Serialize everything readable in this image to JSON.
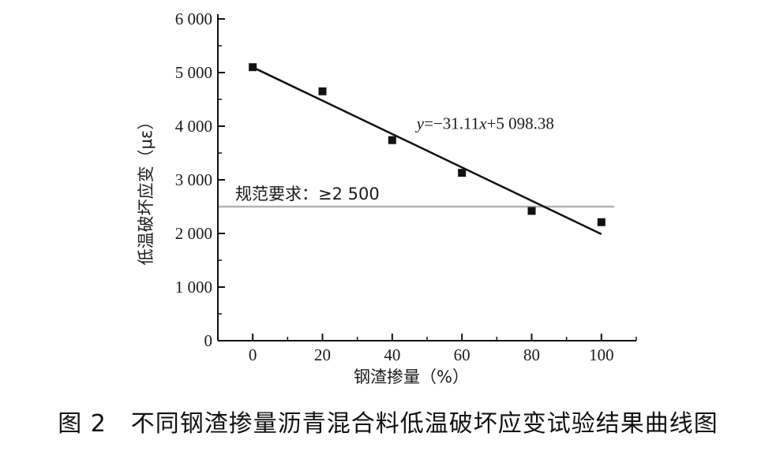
{
  "caption": "图 2　不同钢渣掺量沥青混合料低温破坏应变试验结果曲线图",
  "chart_data": {
    "type": "scatter",
    "title": "",
    "xlabel": "钢渣掺量（%）",
    "ylabel": "低温破坏应变（με）",
    "xlim": [
      -10,
      110
    ],
    "ylim": [
      0,
      6000
    ],
    "x_ticks": [
      0,
      20,
      40,
      60,
      80,
      100
    ],
    "x_tick_labels": [
      "0",
      "20",
      "40",
      "60",
      "80",
      "100"
    ],
    "y_ticks": [
      0,
      1000,
      2000,
      3000,
      4000,
      5000,
      6000
    ],
    "y_tick_labels": [
      "0",
      "1 000",
      "2 000",
      "3 000",
      "4 000",
      "5 000",
      "6 000"
    ],
    "grid": false,
    "series": [
      {
        "x": [
          0,
          20,
          40,
          60,
          80,
          100
        ],
        "y": [
          5100,
          4650,
          3740,
          3130,
          2420,
          2210
        ],
        "marker": "square",
        "color": "#111111"
      }
    ],
    "fit": {
      "slope": -31.11,
      "intercept": 5098.38,
      "x_range": [
        0,
        100
      ],
      "label": "y=−31.11x+5 098.38",
      "color": "#111111"
    },
    "reference_line": {
      "y": 2500,
      "label": "规范要求：≥2 500",
      "color": "#b3b3b3"
    }
  }
}
